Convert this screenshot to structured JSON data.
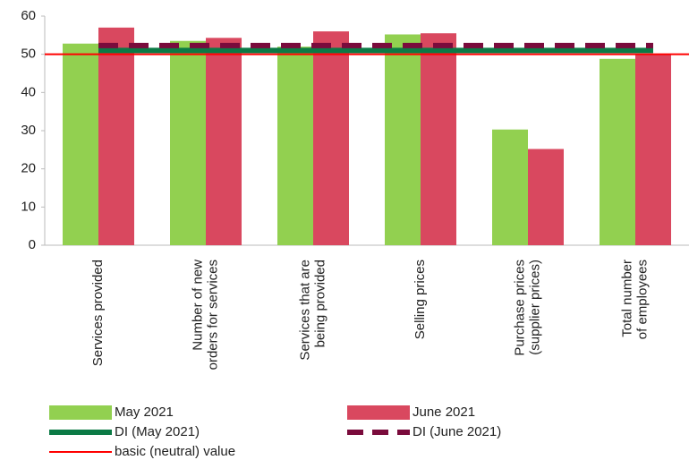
{
  "chart_data": {
    "type": "bar",
    "categories": [
      [
        "Services provided"
      ],
      [
        "Number of new",
        "orders for services"
      ],
      [
        "Services that are",
        "being provided"
      ],
      [
        "Selling prices"
      ],
      [
        "Purchase prices",
        "(supplier prices)"
      ],
      [
        "Total number",
        "of employees"
      ]
    ],
    "series": [
      {
        "name": "May 2021",
        "color": "#92d050",
        "values": [
          52.8,
          53.5,
          52,
          55.2,
          30.3,
          48.8
        ]
      },
      {
        "name": "June 2021",
        "color": "#d9485f",
        "values": [
          57,
          54.3,
          56,
          55.5,
          25.2,
          50
        ]
      }
    ],
    "reference_lines": [
      {
        "name": "DI (May 2021)",
        "color": "#0b7a45",
        "value": 51,
        "style": "solid"
      },
      {
        "name": "DI (June 2021)",
        "color": "#7a0b3c",
        "value": 52.3,
        "style": "dashed"
      },
      {
        "name": "basic (neutral) value",
        "color": "#ff0000",
        "value": 50,
        "style": "thin"
      }
    ],
    "ylim": [
      0,
      60
    ],
    "yticks": [
      0,
      10,
      20,
      30,
      40,
      50,
      60
    ]
  }
}
